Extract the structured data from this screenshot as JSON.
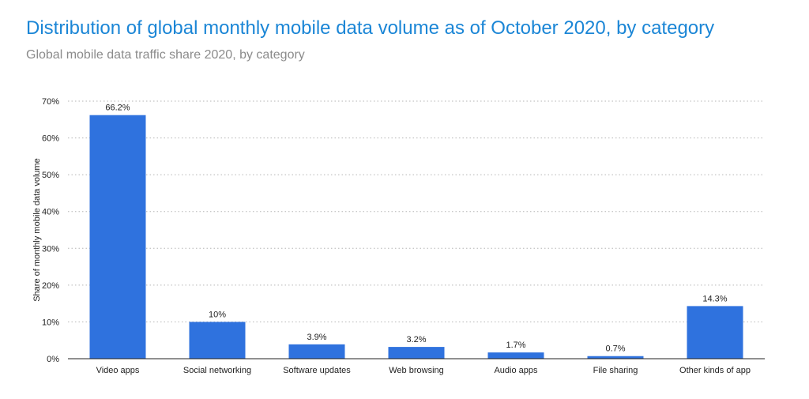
{
  "header": {
    "title": "Distribution of global monthly mobile data volume as of October 2020, by category",
    "subtitle": "Global mobile data traffic share 2020, by category"
  },
  "colors": {
    "bar": "#2f72de",
    "title": "#1b86d6",
    "grid": "#b5b5b5"
  },
  "chart_data": {
    "type": "bar",
    "categories": [
      "Video apps",
      "Social networking",
      "Software updates",
      "Web browsing",
      "Audio apps",
      "File sharing",
      "Other kinds of app"
    ],
    "values": [
      66.2,
      10,
      3.9,
      3.2,
      1.7,
      0.7,
      14.3
    ],
    "data_labels": [
      "66.2%",
      "10%",
      "3.9%",
      "3.2%",
      "1.7%",
      "0.7%",
      "14.3%"
    ],
    "ylabel": "Share of monthly mobile data volume",
    "xlabel": "",
    "ylim": [
      0,
      70
    ],
    "yticks": [
      0,
      10,
      20,
      30,
      40,
      50,
      60,
      70
    ],
    "ytick_labels": [
      "0%",
      "10%",
      "20%",
      "30%",
      "40%",
      "50%",
      "60%",
      "70%"
    ],
    "grid": true,
    "legend": false
  }
}
